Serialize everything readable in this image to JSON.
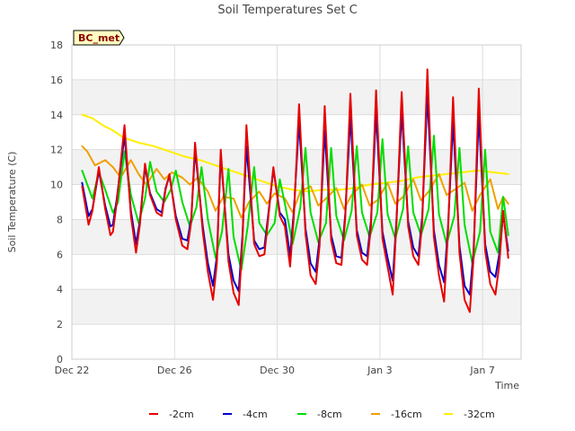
{
  "chart_data": {
    "type": "line",
    "title": "Soil Temperatures Set C",
    "xlabel": "Time",
    "ylabel": "Soil Temperature (C)",
    "station_badge": "BC_met",
    "ylim": [
      0,
      18
    ],
    "yticks": [
      "0",
      "2",
      "4",
      "6",
      "8",
      "10",
      "12",
      "14",
      "16",
      "18"
    ],
    "xlim": [
      0,
      17.5
    ],
    "xticks": [
      {
        "label": "Dec 22",
        "value": 0
      },
      {
        "label": "Dec 26",
        "value": 4
      },
      {
        "label": "Dec 30",
        "value": 8
      },
      {
        "label": "Jan 3",
        "value": 12
      },
      {
        "label": "Jan 7",
        "value": 16
      }
    ],
    "grid": true,
    "legend_position": "bottom-center",
    "series": [
      {
        "name": "-2cm",
        "color": "#e60000",
        "x": [
          0.4,
          0.65,
          0.8,
          1.05,
          1.3,
          1.5,
          1.6,
          1.75,
          2.05,
          2.3,
          2.5,
          2.65,
          2.85,
          3.05,
          3.3,
          3.5,
          3.65,
          3.8,
          4.05,
          4.3,
          4.5,
          4.65,
          4.8,
          5.1,
          5.3,
          5.5,
          5.65,
          5.8,
          6.1,
          6.3,
          6.5,
          6.65,
          6.8,
          7.1,
          7.3,
          7.5,
          7.65,
          7.85,
          8.1,
          8.3,
          8.5,
          8.65,
          8.85,
          9.1,
          9.3,
          9.5,
          9.65,
          9.85,
          10.1,
          10.3,
          10.5,
          10.65,
          10.85,
          11.1,
          11.3,
          11.5,
          11.65,
          11.85,
          12.1,
          12.3,
          12.5,
          12.65,
          12.85,
          13.1,
          13.3,
          13.5,
          13.65,
          13.85,
          14.1,
          14.3,
          14.5,
          14.65,
          14.85,
          15.1,
          15.3,
          15.5,
          15.65,
          15.85,
          16.1,
          16.3,
          16.5,
          16.65,
          16.8,
          17.0
        ],
        "y": [
          9.9,
          7.7,
          8.5,
          11.0,
          8.6,
          7.1,
          7.3,
          9.0,
          13.4,
          8.2,
          6.1,
          7.7,
          11.2,
          9.4,
          8.4,
          8.2,
          9.7,
          10.6,
          8.0,
          6.5,
          6.3,
          7.9,
          12.4,
          7.3,
          5.0,
          3.4,
          5.5,
          12.0,
          5.6,
          3.8,
          3.1,
          6.9,
          13.4,
          6.6,
          5.9,
          6.0,
          8.1,
          11.0,
          8.2,
          7.6,
          5.3,
          8.2,
          14.6,
          7.2,
          4.8,
          4.3,
          6.5,
          14.5,
          6.8,
          5.5,
          5.4,
          8.1,
          15.2,
          7.1,
          5.7,
          5.4,
          7.6,
          15.4,
          6.9,
          5.3,
          3.7,
          7.9,
          15.3,
          7.6,
          5.9,
          5.4,
          7.9,
          16.6,
          7.0,
          4.8,
          3.3,
          7.2,
          15.0,
          6.1,
          3.4,
          2.7,
          5.8,
          15.5,
          6.2,
          4.3,
          3.7,
          5.4,
          8.5,
          5.8
        ]
      },
      {
        "name": "-4cm",
        "color": "#0000cc",
        "x": [
          0.4,
          0.65,
          0.8,
          1.05,
          1.3,
          1.5,
          1.6,
          1.75,
          2.05,
          2.3,
          2.5,
          2.65,
          2.85,
          3.05,
          3.3,
          3.5,
          3.65,
          3.8,
          4.05,
          4.3,
          4.5,
          4.65,
          4.8,
          5.1,
          5.3,
          5.5,
          5.65,
          5.8,
          6.1,
          6.3,
          6.5,
          6.65,
          6.8,
          7.1,
          7.3,
          7.5,
          7.65,
          7.85,
          8.1,
          8.3,
          8.5,
          8.65,
          8.85,
          9.1,
          9.3,
          9.5,
          9.65,
          9.85,
          10.1,
          10.3,
          10.5,
          10.65,
          10.85,
          11.1,
          11.3,
          11.5,
          11.65,
          11.85,
          12.1,
          12.3,
          12.5,
          12.65,
          12.85,
          13.1,
          13.3,
          13.5,
          13.65,
          13.85,
          14.1,
          14.3,
          14.5,
          14.65,
          14.85,
          15.1,
          15.3,
          15.5,
          15.65,
          15.85,
          16.1,
          16.3,
          16.5,
          16.65,
          16.8,
          17.0
        ],
        "y": [
          10.1,
          8.2,
          8.6,
          10.8,
          8.8,
          7.6,
          7.7,
          9.2,
          12.8,
          8.5,
          6.6,
          7.9,
          11.0,
          9.5,
          8.6,
          8.4,
          9.8,
          10.5,
          8.2,
          6.9,
          6.8,
          8.1,
          12.0,
          7.6,
          5.5,
          4.2,
          5.9,
          11.7,
          6.0,
          4.5,
          3.9,
          7.2,
          12.2,
          6.8,
          6.3,
          6.4,
          8.3,
          10.9,
          8.4,
          8.0,
          5.9,
          8.5,
          13.6,
          7.5,
          5.5,
          5.0,
          6.9,
          13.1,
          7.1,
          5.9,
          5.8,
          8.3,
          13.9,
          7.4,
          6.1,
          5.9,
          7.9,
          14.1,
          7.3,
          5.8,
          4.5,
          8.1,
          14.2,
          7.9,
          6.4,
          5.9,
          8.2,
          15.1,
          7.4,
          5.4,
          4.4,
          7.5,
          13.6,
          6.5,
          4.2,
          3.7,
          6.2,
          14.0,
          6.6,
          5.0,
          4.7,
          6.0,
          8.3,
          6.2
        ]
      },
      {
        "name": "-8cm",
        "color": "#00dd00",
        "x": [
          0.4,
          0.8,
          1.05,
          1.3,
          1.6,
          1.8,
          2.05,
          2.3,
          2.6,
          2.85,
          3.05,
          3.3,
          3.6,
          3.85,
          4.05,
          4.3,
          4.6,
          4.85,
          5.05,
          5.3,
          5.6,
          5.85,
          6.1,
          6.3,
          6.6,
          6.85,
          7.1,
          7.3,
          7.6,
          7.9,
          8.1,
          8.3,
          8.6,
          8.9,
          9.1,
          9.3,
          9.6,
          9.9,
          10.1,
          10.3,
          10.6,
          10.9,
          11.1,
          11.3,
          11.6,
          11.9,
          12.1,
          12.3,
          12.6,
          12.9,
          13.1,
          13.3,
          13.6,
          13.9,
          14.1,
          14.3,
          14.6,
          14.9,
          15.1,
          15.3,
          15.6,
          15.9,
          16.1,
          16.3,
          16.6,
          16.8,
          17.0
        ],
        "y": [
          10.8,
          9.2,
          10.7,
          9.7,
          8.4,
          9.0,
          11.9,
          9.4,
          7.8,
          9.2,
          11.3,
          9.6,
          9.0,
          9.7,
          10.8,
          9.0,
          7.6,
          8.7,
          11.0,
          8.0,
          5.8,
          7.3,
          10.9,
          7.0,
          5.1,
          7.6,
          11.0,
          7.8,
          7.1,
          7.8,
          10.3,
          8.9,
          6.6,
          8.7,
          12.1,
          8.4,
          6.7,
          7.8,
          12.1,
          8.2,
          6.8,
          8.5,
          12.2,
          8.4,
          7.0,
          8.4,
          12.6,
          8.3,
          6.9,
          8.6,
          12.2,
          8.4,
          7.1,
          8.6,
          12.8,
          8.3,
          6.6,
          8.2,
          12.1,
          7.7,
          5.5,
          7.3,
          12.0,
          7.3,
          6.1,
          9.3,
          7.1
        ]
      },
      {
        "name": "-16cm",
        "color": "#f0a000",
        "x": [
          0.4,
          0.6,
          0.9,
          1.3,
          1.6,
          1.9,
          2.3,
          2.6,
          2.9,
          3.3,
          3.6,
          3.9,
          4.3,
          4.6,
          4.9,
          5.3,
          5.6,
          5.9,
          6.3,
          6.6,
          6.9,
          7.3,
          7.6,
          7.9,
          8.3,
          8.6,
          8.9,
          9.3,
          9.6,
          9.9,
          10.3,
          10.6,
          10.9,
          11.3,
          11.6,
          11.9,
          12.3,
          12.6,
          12.9,
          13.3,
          13.6,
          13.9,
          14.3,
          14.6,
          14.9,
          15.3,
          15.6,
          15.9,
          16.3,
          16.6,
          16.8,
          17.0
        ],
        "y": [
          12.2,
          11.9,
          11.1,
          11.4,
          11.0,
          10.4,
          11.4,
          10.6,
          10.0,
          10.9,
          10.3,
          10.7,
          10.4,
          10.0,
          10.4,
          9.6,
          8.5,
          9.3,
          9.2,
          8.1,
          9.0,
          9.6,
          8.9,
          9.5,
          9.2,
          8.4,
          9.6,
          9.9,
          8.8,
          9.2,
          9.8,
          8.6,
          9.4,
          10.0,
          8.8,
          9.1,
          10.1,
          8.9,
          9.3,
          10.3,
          9.1,
          9.6,
          10.6,
          9.4,
          9.7,
          10.1,
          8.5,
          9.4,
          10.3,
          8.6,
          9.3,
          8.9
        ]
      },
      {
        "name": "-32cm",
        "color": "#ffee00",
        "x": [
          0.4,
          0.8,
          1.2,
          1.6,
          2.0,
          2.6,
          3.2,
          3.8,
          4.4,
          5.0,
          5.6,
          6.2,
          6.8,
          7.4,
          8.0,
          8.6,
          9.2,
          9.8,
          10.4,
          11.0,
          11.6,
          12.2,
          12.8,
          13.4,
          14.0,
          14.6,
          15.2,
          15.8,
          16.4,
          17.0
        ],
        "y": [
          14.0,
          13.8,
          13.4,
          13.1,
          12.7,
          12.4,
          12.2,
          11.9,
          11.6,
          11.4,
          11.1,
          10.8,
          10.5,
          10.2,
          9.9,
          9.7,
          9.6,
          9.7,
          9.7,
          9.8,
          10.0,
          10.1,
          10.2,
          10.4,
          10.5,
          10.6,
          10.7,
          10.8,
          10.7,
          10.6
        ]
      }
    ]
  }
}
